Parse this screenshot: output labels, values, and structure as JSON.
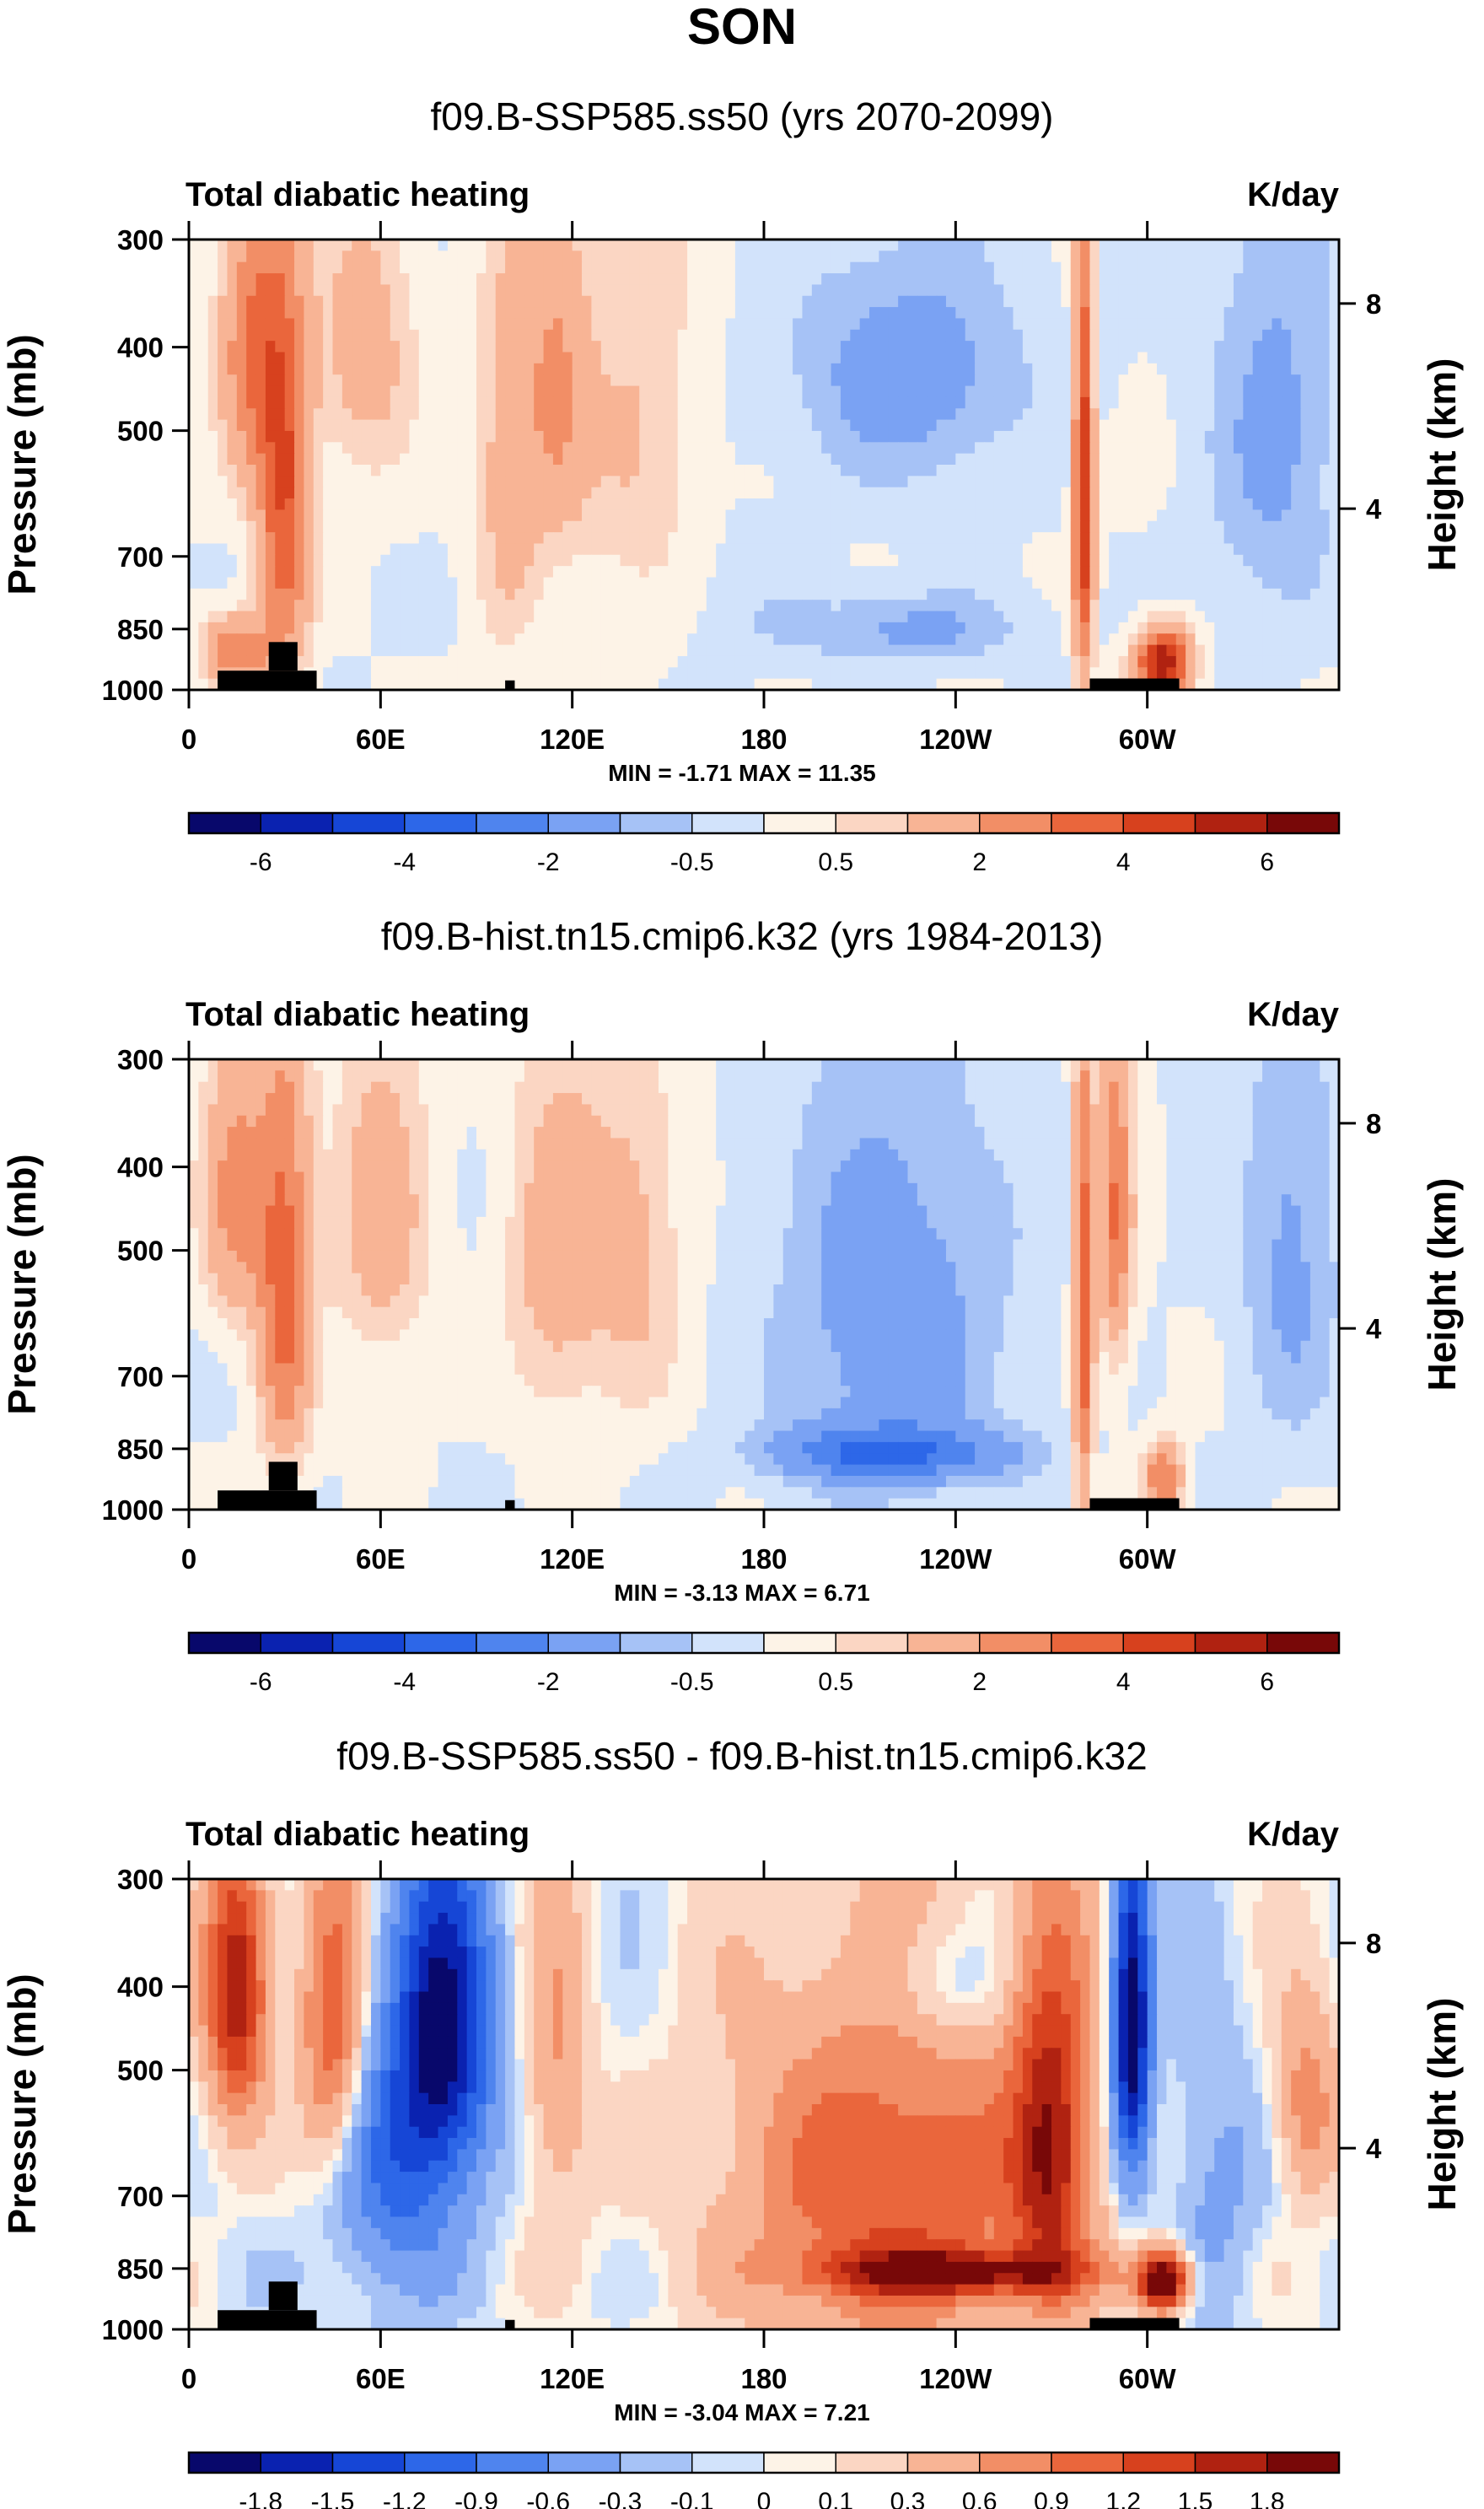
{
  "figure": {
    "title": "SON",
    "left_axis_label": "Pressure (mb)",
    "right_axis_label": "Height (km)",
    "field_label": "Total diabatic heating",
    "units": "K/day"
  },
  "colors": {
    "land_mask": "#000000",
    "palette": [
      "#08086b",
      "#0a22b0",
      "#1646d6",
      "#2d67e8",
      "#4f84ee",
      "#7aa2f3",
      "#a6c2f6",
      "#d2e3fb",
      "#fdf3e7",
      "#fbd6c3",
      "#f8b495",
      "#f28e66",
      "#ea663c",
      "#d7411e",
      "#b02211",
      "#780808"
    ]
  },
  "chart_data": [
    {
      "type": "heatmap",
      "title": "f09.B-SSP585.ss50 (yrs 2070-2099)",
      "field": "Total diabatic heating",
      "units": "K/day",
      "xlabel": "",
      "ylabel": "Pressure (mb)",
      "y2label": "Height (km)",
      "x_ticks": [
        "0",
        "60E",
        "120E",
        "180",
        "120W",
        "60W"
      ],
      "x_tick_lon": [
        0,
        60,
        120,
        180,
        240,
        300
      ],
      "xlim": [
        0,
        360
      ],
      "y_ticks": [
        300,
        400,
        500,
        700,
        850,
        1000
      ],
      "ylim": [
        1000,
        300
      ],
      "y2_ticks": [
        8,
        4
      ],
      "min_max_text": "MIN = -1.71  MAX = 11.35",
      "colorbar_levels": [
        -7,
        -6,
        -5,
        -4,
        -3,
        -2,
        -1,
        -0.5,
        0,
        0.5,
        1,
        2,
        3,
        4,
        5,
        6,
        7
      ],
      "colorbar_labels": [
        "-6",
        "-4",
        "-2",
        "-0.5",
        "0.5",
        "2",
        "4",
        "6"
      ],
      "features": [
        {
          "lon": 30,
          "p": 600,
          "value": 4,
          "dlon": 8,
          "dp": 300
        },
        {
          "lon": 20,
          "p": 400,
          "value": 3,
          "dlon": 10,
          "dp": 150
        },
        {
          "lon": 15,
          "p": 900,
          "value": 3,
          "dlon": 10,
          "dp": 80
        },
        {
          "lon": 55,
          "p": 400,
          "value": 1.5,
          "dlon": 15,
          "dp": 150
        },
        {
          "lon": 100,
          "p": 550,
          "value": 1.5,
          "dlon": 10,
          "dp": 300
        },
        {
          "lon": 115,
          "p": 450,
          "value": 2,
          "dlon": 10,
          "dp": 200
        },
        {
          "lon": 140,
          "p": 500,
          "value": 1,
          "dlon": 20,
          "dp": 300
        },
        {
          "lon": 225,
          "p": 430,
          "value": -1.5,
          "dlon": 35,
          "dp": 130
        },
        {
          "lon": 225,
          "p": 850,
          "value": -1.2,
          "dlon": 35,
          "dp": 80
        },
        {
          "lon": 170,
          "p": 800,
          "value": -0.3,
          "dlon": 20,
          "dp": 150
        },
        {
          "lon": 280,
          "p": 600,
          "value": 5,
          "dlon": 3,
          "dp": 350
        },
        {
          "lon": 305,
          "p": 930,
          "value": 6,
          "dlon": 8,
          "dp": 80
        },
        {
          "lon": 340,
          "p": 500,
          "value": -1.2,
          "dlon": 20,
          "dp": 300
        }
      ],
      "land_blocks": [
        {
          "lon1": 9,
          "lon2": 40,
          "p1": 950,
          "p2": 1000
        },
        {
          "lon1": 25,
          "lon2": 34,
          "p1": 880,
          "p2": 950
        },
        {
          "lon1": 99,
          "lon2": 102,
          "p1": 975,
          "p2": 1000
        },
        {
          "lon1": 282,
          "lon2": 310,
          "p1": 970,
          "p2": 1000
        }
      ]
    },
    {
      "type": "heatmap",
      "title": "f09.B-hist.tn15.cmip6.k32 (yrs 1984-2013)",
      "field": "Total diabatic heating",
      "units": "K/day",
      "xlabel": "",
      "ylabel": "Pressure (mb)",
      "y2label": "Height (km)",
      "x_ticks": [
        "0",
        "60E",
        "120E",
        "180",
        "120W",
        "60W"
      ],
      "x_tick_lon": [
        0,
        60,
        120,
        180,
        240,
        300
      ],
      "xlim": [
        0,
        360
      ],
      "y_ticks": [
        300,
        400,
        500,
        700,
        850,
        1000
      ],
      "ylim": [
        1000,
        300
      ],
      "y2_ticks": [
        8,
        4
      ],
      "min_max_text": "MIN = -3.13  MAX =  6.71",
      "colorbar_levels": [
        -7,
        -6,
        -5,
        -4,
        -3,
        -2,
        -1,
        -0.5,
        0,
        0.5,
        1,
        2,
        3,
        4,
        5,
        6,
        7
      ],
      "colorbar_labels": [
        "-6",
        "-4",
        "-2",
        "-0.5",
        "0.5",
        "2",
        "4",
        "6"
      ],
      "features": [
        {
          "lon": 30,
          "p": 550,
          "value": 3.5,
          "dlon": 8,
          "dp": 300
        },
        {
          "lon": 15,
          "p": 430,
          "value": 2.5,
          "dlon": 10,
          "dp": 150
        },
        {
          "lon": 60,
          "p": 450,
          "value": 1.5,
          "dlon": 15,
          "dp": 200
        },
        {
          "lon": 115,
          "p": 500,
          "value": 1.5,
          "dlon": 15,
          "dp": 250
        },
        {
          "lon": 140,
          "p": 500,
          "value": 1.2,
          "dlon": 15,
          "dp": 250
        },
        {
          "lon": 220,
          "p": 600,
          "value": -1.5,
          "dlon": 35,
          "dp": 350
        },
        {
          "lon": 220,
          "p": 860,
          "value": -2.8,
          "dlon": 35,
          "dp": 60
        },
        {
          "lon": 280,
          "p": 600,
          "value": 4,
          "dlon": 3,
          "dp": 350
        },
        {
          "lon": 290,
          "p": 450,
          "value": 3,
          "dlon": 5,
          "dp": 200
        },
        {
          "lon": 305,
          "p": 920,
          "value": 3,
          "dlon": 6,
          "dp": 80
        },
        {
          "lon": 345,
          "p": 500,
          "value": -1.2,
          "dlon": 15,
          "dp": 300
        }
      ],
      "land_blocks": [
        {
          "lon1": 9,
          "lon2": 40,
          "p1": 950,
          "p2": 1000
        },
        {
          "lon1": 25,
          "lon2": 34,
          "p1": 880,
          "p2": 950
        },
        {
          "lon1": 99,
          "lon2": 102,
          "p1": 975,
          "p2": 1000
        },
        {
          "lon1": 282,
          "lon2": 310,
          "p1": 970,
          "p2": 1000
        }
      ]
    },
    {
      "type": "heatmap",
      "title": "f09.B-SSP585.ss50 - f09.B-hist.tn15.cmip6.k32",
      "field": "Total diabatic heating",
      "units": "K/day",
      "xlabel": "",
      "ylabel": "Pressure (mb)",
      "y2label": "Height (km)",
      "x_ticks": [
        "0",
        "60E",
        "120E",
        "180",
        "120W",
        "60W"
      ],
      "x_tick_lon": [
        0,
        60,
        120,
        180,
        240,
        300
      ],
      "xlim": [
        0,
        360
      ],
      "y_ticks": [
        300,
        400,
        500,
        700,
        850,
        1000
      ],
      "ylim": [
        1000,
        300
      ],
      "y2_ticks": [
        8,
        4
      ],
      "min_max_text": "MIN = -3.04  MAX =  7.21",
      "colorbar_levels": [
        -2.1,
        -1.8,
        -1.5,
        -1.2,
        -0.9,
        -0.6,
        -0.3,
        -0.1,
        0,
        0.1,
        0.3,
        0.6,
        0.9,
        1.2,
        1.5,
        1.8,
        2.1
      ],
      "colorbar_labels": [
        "-1.8",
        "-1.5",
        "-1.2",
        "-0.9",
        "-0.6",
        "-0.3",
        "-0.1",
        "0",
        "0.1",
        "0.3",
        "0.6",
        "0.9",
        "1.2",
        "1.5",
        "1.8"
      ],
      "features": [
        {
          "lon": 15,
          "p": 400,
          "value": 1.8,
          "dlon": 10,
          "dp": 150
        },
        {
          "lon": 45,
          "p": 450,
          "value": 1.2,
          "dlon": 10,
          "dp": 200
        },
        {
          "lon": 80,
          "p": 450,
          "value": -1.8,
          "dlon": 15,
          "dp": 200
        },
        {
          "lon": 65,
          "p": 650,
          "value": -0.9,
          "dlon": 20,
          "dp": 250
        },
        {
          "lon": 115,
          "p": 500,
          "value": 0.6,
          "dlon": 10,
          "dp": 250
        },
        {
          "lon": 220,
          "p": 700,
          "value": 1.2,
          "dlon": 50,
          "dp": 350
        },
        {
          "lon": 240,
          "p": 860,
          "value": 1.5,
          "dlon": 40,
          "dp": 50
        },
        {
          "lon": 235,
          "p": 400,
          "value": -0.5,
          "dlon": 20,
          "dp": 70
        },
        {
          "lon": 270,
          "p": 600,
          "value": 1.5,
          "dlon": 12,
          "dp": 300
        },
        {
          "lon": 295,
          "p": 450,
          "value": -2.2,
          "dlon": 6,
          "dp": 200
        },
        {
          "lon": 305,
          "p": 880,
          "value": 2.5,
          "dlon": 8,
          "dp": 70
        },
        {
          "lon": 350,
          "p": 550,
          "value": 0.8,
          "dlon": 10,
          "dp": 150
        },
        {
          "lon": 320,
          "p": 700,
          "value": -0.4,
          "dlon": 15,
          "dp": 300
        }
      ],
      "land_blocks": [
        {
          "lon1": 9,
          "lon2": 40,
          "p1": 950,
          "p2": 1000
        },
        {
          "lon1": 25,
          "lon2": 34,
          "p1": 880,
          "p2": 950
        },
        {
          "lon1": 99,
          "lon2": 102,
          "p1": 975,
          "p2": 1000
        },
        {
          "lon1": 282,
          "lon2": 310,
          "p1": 970,
          "p2": 1000
        }
      ]
    }
  ]
}
